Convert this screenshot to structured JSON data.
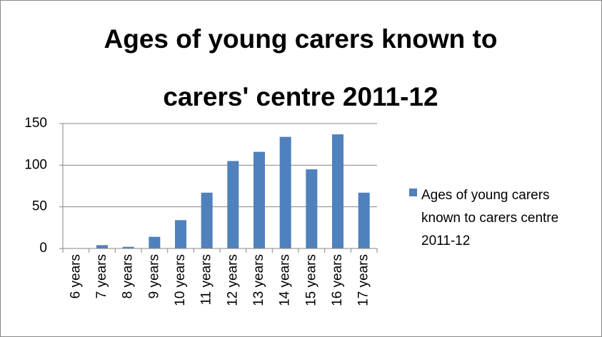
{
  "chart_data": {
    "type": "bar",
    "title": "Ages of young carers known to carers' centre 2011-12",
    "categories": [
      "6 years",
      "7 years",
      "8 years",
      "9 years",
      "10 years",
      "11 years",
      "12 years",
      "13 years",
      "14 years",
      "15 years",
      "16 years",
      "17 years"
    ],
    "series": [
      {
        "name": "Ages of young carers known to carers centre 2011-12",
        "color": "#4f81bd",
        "values": [
          0,
          4,
          2,
          14,
          34,
          67,
          105,
          116,
          134,
          95,
          137,
          67
        ]
      }
    ],
    "ylim": [
      0,
      150
    ],
    "yticks": [
      0,
      50,
      100,
      150
    ],
    "grid": true,
    "legend": "right"
  }
}
